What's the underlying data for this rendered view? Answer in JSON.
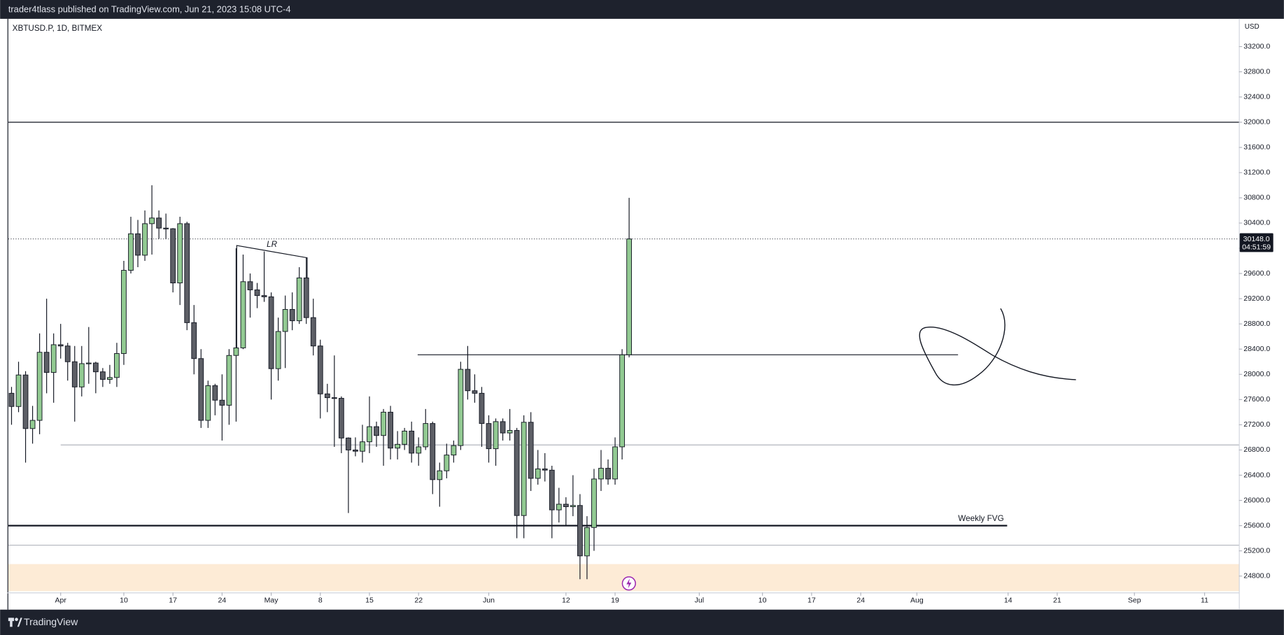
{
  "header": "trader4tlass published on TradingView.com, Jun 21, 2023 15:08 UTC-4",
  "footer_brand": "TradingView",
  "chart_data": {
    "type": "candlestick",
    "symbol": "XBTUSD.P, 1D, BITMEX",
    "currency": "USD",
    "x": [
      "2023-03-25",
      "2023-03-26",
      "2023-03-27",
      "2023-03-28",
      "2023-03-29",
      "2023-03-30",
      "2023-03-31",
      "2023-04-01",
      "2023-04-02",
      "2023-04-03",
      "2023-04-04",
      "2023-04-05",
      "2023-04-06",
      "2023-04-07",
      "2023-04-08",
      "2023-04-09",
      "2023-04-10",
      "2023-04-11",
      "2023-04-12",
      "2023-04-13",
      "2023-04-14",
      "2023-04-15",
      "2023-04-16",
      "2023-04-17",
      "2023-04-18",
      "2023-04-19",
      "2023-04-20",
      "2023-04-21",
      "2023-04-22",
      "2023-04-23",
      "2023-04-24",
      "2023-04-25",
      "2023-04-26",
      "2023-04-27",
      "2023-04-28",
      "2023-04-29",
      "2023-04-30",
      "2023-05-01",
      "2023-05-02",
      "2023-05-03",
      "2023-05-04",
      "2023-05-05",
      "2023-05-06",
      "2023-05-07",
      "2023-05-08",
      "2023-05-09",
      "2023-05-10",
      "2023-05-11",
      "2023-05-12",
      "2023-05-13",
      "2023-05-14",
      "2023-05-15",
      "2023-05-16",
      "2023-05-17",
      "2023-05-18",
      "2023-05-19",
      "2023-05-20",
      "2023-05-21",
      "2023-05-22",
      "2023-05-23",
      "2023-05-24",
      "2023-05-25",
      "2023-05-26",
      "2023-05-27",
      "2023-05-28",
      "2023-05-29",
      "2023-05-30",
      "2023-05-31",
      "2023-06-01",
      "2023-06-02",
      "2023-06-03",
      "2023-06-04",
      "2023-06-05",
      "2023-06-06",
      "2023-06-07",
      "2023-06-08",
      "2023-06-09",
      "2023-06-10",
      "2023-06-11",
      "2023-06-12",
      "2023-06-13",
      "2023-06-14",
      "2023-06-15",
      "2023-06-16",
      "2023-06-17",
      "2023-06-18",
      "2023-06-19",
      "2023-06-20",
      "2023-06-21"
    ],
    "open": [
      27700,
      27490,
      27990,
      27140,
      27270,
      28350,
      28030,
      28470,
      28450,
      28200,
      27800,
      28170,
      28180,
      28040,
      27920,
      27950,
      28330,
      29650,
      30230,
      29890,
      30390,
      30480,
      30320,
      30310,
      29450,
      30390,
      28820,
      28250,
      27270,
      27820,
      27590,
      27510,
      28300,
      28420,
      29470,
      29340,
      29250,
      29230,
      28090,
      28680,
      29030,
      28850,
      29530,
      28900,
      28450,
      27690,
      27630,
      27620,
      26990,
      26800,
      26780,
      26930,
      27170,
      27030,
      27400,
      26830,
      26890,
      27100,
      26750,
      26850,
      27220,
      26330,
      26470,
      26720,
      26870,
      28080,
      27740,
      27700,
      27220,
      26820,
      27250,
      27070,
      27110,
      25760,
      27240,
      26350,
      26500,
      26480,
      25850,
      25940,
      25900,
      25920,
      25120,
      25570,
      26340,
      26510,
      26340,
      26850,
      28310
    ],
    "high": [
      27800,
      28200,
      28050,
      27500,
      28650,
      29200,
      28650,
      28800,
      28500,
      28450,
      28450,
      28750,
      28200,
      28100,
      28150,
      28500,
      29800,
      30500,
      30450,
      30600,
      31000,
      30600,
      30550,
      30320,
      30500,
      30420,
      29100,
      28400,
      27900,
      27850,
      28000,
      28400,
      30000,
      29900,
      29600,
      29450,
      29950,
      29300,
      28900,
      29250,
      29300,
      29700,
      29850,
      29200,
      28550,
      27850,
      28300,
      27650,
      27000,
      27000,
      27200,
      27650,
      27250,
      27450,
      27500,
      27100,
      27150,
      27250,
      27000,
      27450,
      27250,
      26600,
      26900,
      26950,
      28200,
      28450,
      28000,
      27800,
      27350,
      27300,
      27300,
      27450,
      27150,
      27350,
      27400,
      26800,
      26750,
      26550,
      26200,
      26050,
      26400,
      26100,
      25750,
      26500,
      26800,
      26650,
      27000,
      28400,
      30800
    ],
    "low": [
      27200,
      27400,
      26600,
      26900,
      27050,
      27700,
      27550,
      28250,
      27900,
      27250,
      27650,
      27850,
      27700,
      27800,
      27850,
      27800,
      28150,
      29600,
      29700,
      29800,
      29900,
      30150,
      30150,
      29300,
      29100,
      28700,
      28000,
      27150,
      27150,
      27350,
      26950,
      27200,
      27250,
      28400,
      28900,
      29050,
      29150,
      27600,
      27900,
      28100,
      28700,
      28800,
      28800,
      28300,
      27300,
      27400,
      26850,
      26750,
      25800,
      26700,
      26600,
      26750,
      26850,
      26550,
      26650,
      26650,
      26800,
      26600,
      26550,
      26800,
      26100,
      25900,
      26350,
      26600,
      26800,
      27600,
      27550,
      26850,
      26600,
      26550,
      26950,
      26950,
      25400,
      25400,
      26150,
      26250,
      26300,
      25400,
      25650,
      25600,
      25750,
      24750,
      24750,
      25200,
      26150,
      26250,
      26250,
      26650,
      28270
    ],
    "close": [
      27490,
      27990,
      27140,
      27270,
      28350,
      28030,
      28470,
      28450,
      28200,
      27800,
      28170,
      28180,
      28040,
      27920,
      27950,
      28330,
      29650,
      30230,
      29890,
      30390,
      30480,
      30320,
      30310,
      29450,
      30390,
      28820,
      28250,
      27270,
      27820,
      27590,
      27510,
      28300,
      28420,
      29470,
      29340,
      29250,
      29230,
      28090,
      28680,
      29030,
      28850,
      29530,
      28900,
      28450,
      27690,
      27630,
      27620,
      26990,
      26800,
      26780,
      26930,
      27170,
      27030,
      27400,
      26830,
      26890,
      27100,
      26750,
      26850,
      27220,
      26330,
      26470,
      26720,
      26870,
      28080,
      27740,
      27700,
      27220,
      26820,
      27250,
      27070,
      27110,
      25760,
      27240,
      26350,
      26500,
      26480,
      25850,
      25940,
      25900,
      25920,
      25120,
      25570,
      26340,
      26510,
      26340,
      26850,
      28310,
      30148
    ],
    "up_color": "#92ca92",
    "down_color": "#5d5f66",
    "xlim": [
      "2023-03-24",
      "2023-09-16"
    ],
    "xticks": [
      {
        "value": "2023-04-01",
        "label": "Apr"
      },
      {
        "value": "2023-04-10",
        "label": "10"
      },
      {
        "value": "2023-04-17",
        "label": "17"
      },
      {
        "value": "2023-04-24",
        "label": "24"
      },
      {
        "value": "2023-05-01",
        "label": "May"
      },
      {
        "value": "2023-05-08",
        "label": "8"
      },
      {
        "value": "2023-05-15",
        "label": "15"
      },
      {
        "value": "2023-05-22",
        "label": "22"
      },
      {
        "value": "2023-06-01",
        "label": "Jun"
      },
      {
        "value": "2023-06-12",
        "label": "12"
      },
      {
        "value": "2023-06-19",
        "label": "19"
      },
      {
        "value": "2023-07-01",
        "label": "Jul"
      },
      {
        "value": "2023-07-10",
        "label": "10"
      },
      {
        "value": "2023-07-17",
        "label": "17"
      },
      {
        "value": "2023-07-24",
        "label": "24"
      },
      {
        "value": "2023-08-01",
        "label": "Aug"
      },
      {
        "value": "2023-08-14",
        "label": "14"
      },
      {
        "value": "2023-08-21",
        "label": "21"
      },
      {
        "value": "2023-09-01",
        "label": "Sep"
      },
      {
        "value": "2023-09-11",
        "label": "11"
      }
    ],
    "ylim": [
      24540,
      33640
    ],
    "yticks": [
      {
        "value": 24800,
        "label": "24800.0"
      },
      {
        "value": 25200,
        "label": "25200.0"
      },
      {
        "value": 25600,
        "label": "25600.0"
      },
      {
        "value": 26000,
        "label": "26000.0"
      },
      {
        "value": 26400,
        "label": "26400.0"
      },
      {
        "value": 26800,
        "label": "26800.0"
      },
      {
        "value": 27200,
        "label": "27200.0"
      },
      {
        "value": 27600,
        "label": "27600.0"
      },
      {
        "value": 28000,
        "label": "28000.0"
      },
      {
        "value": 28400,
        "label": "28400.0"
      },
      {
        "value": 28800,
        "label": "28800.0"
      },
      {
        "value": 29200,
        "label": "29200.0"
      },
      {
        "value": 29600,
        "label": "29600.0"
      },
      {
        "value": 30000,
        "label": "30000.0"
      },
      {
        "value": 30400,
        "label": "30400.0"
      },
      {
        "value": 30800,
        "label": "30800.0"
      },
      {
        "value": 31200,
        "label": "31200.0"
      },
      {
        "value": 31600,
        "label": "31600.0"
      },
      {
        "value": 32000,
        "label": "32000.0"
      },
      {
        "value": 32400,
        "label": "32400.0"
      },
      {
        "value": 32800,
        "label": "32800.0"
      },
      {
        "value": 33200,
        "label": "33200.0"
      }
    ],
    "grid": false,
    "last_price": {
      "value": 30148,
      "label": "30148.0"
    },
    "countdown": "04:51:59",
    "levels": [
      32000,
      28310,
      26880,
      25600,
      25290
    ],
    "zone": [
      24560,
      24990
    ],
    "annotations": [
      "LR",
      "Weekly FVG"
    ]
  }
}
